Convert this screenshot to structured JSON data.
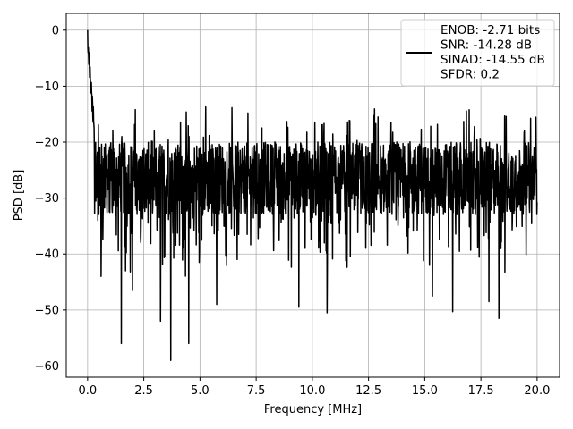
{
  "chart_data": {
    "type": "line",
    "xlabel": "Frequency [MHz]",
    "ylabel": "PSD [dB]",
    "xlim": [
      -0.95,
      21.0
    ],
    "ylim": [
      -62,
      3
    ],
    "x_ticks": [
      0.0,
      2.5,
      5.0,
      7.5,
      10.0,
      12.5,
      15.0,
      17.5,
      20.0
    ],
    "x_tick_labels": [
      "0.0",
      "2.5",
      "5.0",
      "7.5",
      "10.0",
      "12.5",
      "15.0",
      "17.5",
      "20.0"
    ],
    "y_ticks": [
      0,
      -10,
      -20,
      -30,
      -40,
      -50,
      -60
    ],
    "y_tick_labels": [
      "0",
      "−10",
      "−20",
      "−30",
      "−40",
      "−50",
      "−60"
    ],
    "grid": true,
    "legend_position": "top-right",
    "series": [
      {
        "color": "#000000",
        "x_range": [
          0.0,
          20.0
        ],
        "peak": {
          "x": 0.0,
          "y": 0.0
        },
        "noise_floor_band": [
          -33,
          -20
        ],
        "notable_dips": [
          {
            "x": 1.5,
            "y": -56
          },
          {
            "x": 3.7,
            "y": -59
          },
          {
            "x": 4.5,
            "y": -56
          },
          {
            "x": 3.25,
            "y": -52
          },
          {
            "x": 9.4,
            "y": -49.5
          },
          {
            "x": 10.65,
            "y": -50.5
          },
          {
            "x": 16.25,
            "y": -50.3
          },
          {
            "x": 18.3,
            "y": -51.5
          },
          {
            "x": 17.85,
            "y": -48.5
          },
          {
            "x": 5.75,
            "y": -49
          },
          {
            "x": 2.0,
            "y": -46.5
          },
          {
            "x": 0.6,
            "y": -44
          },
          {
            "x": 15.35,
            "y": -47.5
          }
        ]
      }
    ],
    "legend_lines": [
      "ENOB: -2.71 bits",
      "SNR: -14.28 dB",
      "SINAD: -14.55 dB",
      "SFDR: 0.2"
    ]
  }
}
